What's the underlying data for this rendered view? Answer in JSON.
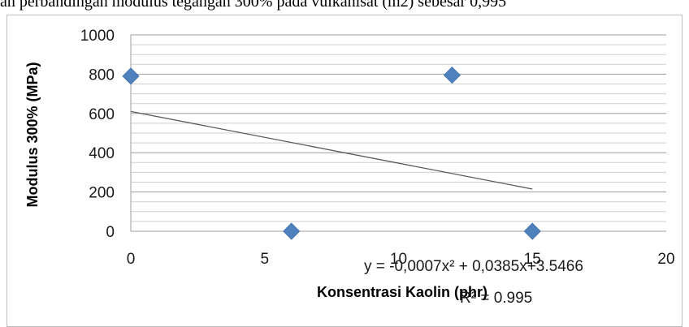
{
  "top_text": "an perbandingan modulus tegangan 300% pada vulkanisat (m2) sebesar 0,995",
  "chart_data": {
    "type": "scatter",
    "title": "",
    "xlabel": "Konsentrasi  Kaolin (phr)",
    "ylabel": "Modulus 300% (MPa)",
    "xlim": [
      0,
      20
    ],
    "ylim": [
      0,
      1000
    ],
    "x_ticks": [
      0,
      5,
      10,
      15,
      20
    ],
    "y_ticks": [
      0,
      200,
      400,
      600,
      800,
      1000
    ],
    "grid": true,
    "series": [
      {
        "points": [
          [
            0,
            790
          ],
          [
            6,
            0
          ],
          [
            12,
            795
          ],
          [
            15,
            0
          ]
        ],
        "color": "#4f81bd",
        "marker": "diamond"
      }
    ],
    "trendline": {
      "type": "polynomial",
      "x_range": [
        0,
        15
      ],
      "y_start": 610,
      "y_end": 215,
      "equation": "y = -0,0007x² + 0,0385x+3.5466",
      "r2": "R² = 0.995"
    }
  }
}
